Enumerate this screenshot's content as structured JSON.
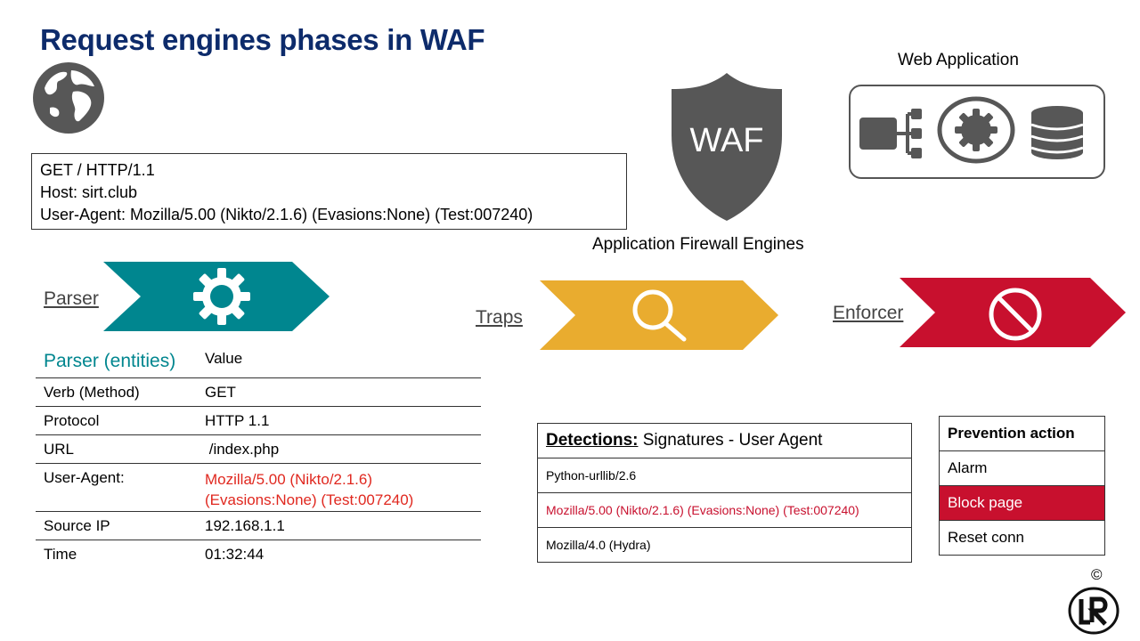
{
  "title": "Request engines phases in WAF",
  "request": {
    "lines": [
      "GET / HTTP/1.1",
      "Host: sirt.club",
      "User-Agent: Mozilla/5.00 (Nikto/2.1.6) (Evasions:None) (Test:007240)"
    ]
  },
  "waf": {
    "shield_text": "WAF",
    "caption": "Application Firewall Engines"
  },
  "web_app": {
    "label": "Web Application"
  },
  "phases": {
    "parser": "Parser",
    "traps": "Traps",
    "enforcer": "Enforcer"
  },
  "parser_table": {
    "header_entities": "Parser (entities)",
    "header_value": "Value",
    "rows": [
      {
        "entity": "Verb (Method)",
        "value": "GET"
      },
      {
        "entity": "Protocol",
        "value": "HTTP 1.1"
      },
      {
        "entity": "URL",
        "value": " /index.php"
      },
      {
        "entity": "User-Agent:",
        "value": "Mozilla/5.00 (Nikto/2.1.6) (Evasions:None) (Test:007240)"
      },
      {
        "entity": "Source IP",
        "value": "192.168.1.1"
      },
      {
        "entity": "Time",
        "value": "01:32:44"
      }
    ]
  },
  "detections": {
    "header_prefix": "Detections:",
    "header_rest": " Signatures - User Agent",
    "rows": [
      "Python-urllib/2.6",
      "Mozilla/5.00 (Nikto/2.1.6) (Evasions:None) (Test:007240)",
      "Mozilla/4.0 (Hydra)"
    ]
  },
  "prevention": {
    "header": "Prevention action",
    "rows": [
      "Alarm",
      "Block page",
      "Reset conn"
    ]
  },
  "copyright": "©",
  "colors": {
    "title": "#0d2b6b",
    "parser": "#00868f",
    "traps": "#e9ac2f",
    "enforcer": "#c8102e",
    "highlight_red": "#e0281f",
    "icon_gray": "#555555"
  },
  "icons": [
    "globe-icon",
    "waf-shield-icon",
    "network-icon",
    "gear-icon",
    "database-icon",
    "search-icon",
    "block-icon",
    "lr-logo"
  ]
}
